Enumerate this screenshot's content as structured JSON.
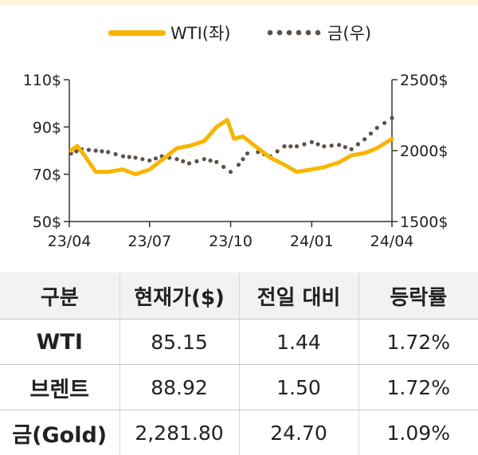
{
  "legend": {
    "wti": "WTI(좌)",
    "gold": "금(우)"
  },
  "colors": {
    "wti": "#f7b500",
    "gold": "#5a524b"
  },
  "chart_data": {
    "type": "line",
    "x_ticks": [
      "23/04",
      "23/07",
      "23/10",
      "24/01",
      "24/04"
    ],
    "y_left": {
      "ticks": [
        "110$",
        "90$",
        "70$",
        "50$"
      ],
      "lim": [
        50,
        110
      ]
    },
    "y_right": {
      "ticks": [
        "2500$",
        "2000$",
        "1500$"
      ],
      "lim": [
        1500,
        2500
      ]
    },
    "series": [
      {
        "name": "WTI(좌)",
        "axis": "left",
        "style": "line",
        "x": [
          "23/04/03",
          "23/04/10",
          "23/04/20",
          "23/05/01",
          "23/05/15",
          "23/06/01",
          "23/06/15",
          "23/07/01",
          "23/07/15",
          "23/08/01",
          "23/08/15",
          "23/09/01",
          "23/09/15",
          "23/09/27",
          "23/10/05",
          "23/10/15",
          "23/11/01",
          "23/11/15",
          "23/12/01",
          "23/12/15",
          "24/01/01",
          "24/01/15",
          "24/02/01",
          "24/02/15",
          "24/03/01",
          "24/03/15",
          "24/04/01"
        ],
        "values": [
          80,
          82,
          77,
          71,
          71,
          72,
          70,
          72,
          76,
          81,
          82,
          84,
          90,
          93,
          85,
          86,
          81,
          77,
          74,
          71,
          72,
          73,
          75,
          78,
          79,
          81,
          85
        ]
      },
      {
        "name": "금(우)",
        "axis": "right",
        "style": "dotted",
        "x": [
          "23/04/03",
          "23/04/15",
          "23/05/01",
          "23/05/15",
          "23/06/01",
          "23/06/15",
          "23/07/01",
          "23/07/15",
          "23/08/01",
          "23/08/15",
          "23/09/01",
          "23/09/15",
          "23/10/01",
          "23/10/10",
          "23/10/20",
          "23/11/01",
          "23/11/15",
          "23/12/01",
          "23/12/15",
          "24/01/01",
          "24/01/15",
          "24/02/01",
          "24/02/15",
          "24/03/01",
          "24/03/15",
          "24/04/01"
        ],
        "values": [
          1980,
          2010,
          2000,
          1990,
          1960,
          1950,
          1930,
          1960,
          1940,
          1910,
          1940,
          1920,
          1850,
          1900,
          1980,
          1990,
          1960,
          2030,
          2030,
          2060,
          2030,
          2040,
          2010,
          2080,
          2160,
          2230
        ]
      }
    ]
  },
  "table": {
    "headers": [
      "구분",
      "현재가($)",
      "전일 대비",
      "등락률"
    ],
    "rows": [
      [
        "WTI",
        "85.15",
        "1.44",
        "1.72%"
      ],
      [
        "브렌트",
        "88.92",
        "1.50",
        "1.72%"
      ],
      [
        "금(Gold)",
        "2,281.80",
        "24.70",
        "1.09%"
      ]
    ]
  }
}
